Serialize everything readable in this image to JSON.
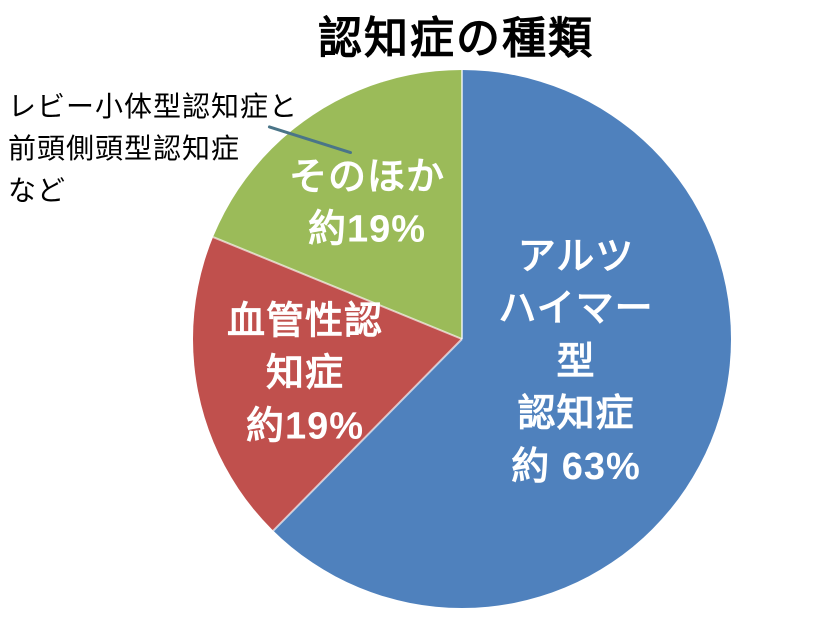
{
  "title": "認知症の種類",
  "chart_data": {
    "type": "pie",
    "title": "認知症の種類",
    "direction": "clockwise",
    "start_angle_deg": 0,
    "legend": "none",
    "slices": [
      {
        "name": "アルツハイマー型認知症",
        "value": 63,
        "value_label": "約 63%",
        "color": "#4f81bd",
        "label_lines": [
          "アルツ",
          "ハイマー",
          "型",
          "認知症",
          "約 63%"
        ]
      },
      {
        "name": "血管性認知症",
        "value": 19,
        "value_label": "約19%",
        "color": "#c0504d",
        "label_lines": [
          "血管性認",
          "知症",
          "約19%"
        ]
      },
      {
        "name": "そのほか",
        "value": 19,
        "value_label": "約19%",
        "color": "#9bbb59",
        "label_lines": [
          "そのほか",
          "約19%"
        ]
      }
    ],
    "annotation": {
      "lines": [
        "レビー小体型認知症と",
        "前頭側頭型認知症",
        "など"
      ]
    }
  },
  "colors": {
    "alzheimer_blue": "#4f81bd",
    "vascular_red": "#c0504d",
    "other_green": "#9bbb59",
    "leader_line": "#4a7588",
    "title_text": "#000000",
    "label_text": "#ffffff",
    "background": "#ffffff"
  }
}
